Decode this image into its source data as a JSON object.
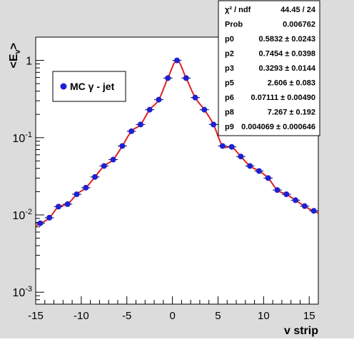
{
  "chart_data": {
    "type": "scatter",
    "xlabel": "v strip",
    "ylabel": "<E",
    "ylabel_subscript": "v",
    "ylabel_close": ">",
    "xlim": [
      -15,
      16
    ],
    "ylim": [
      0.0007,
      2.0
    ],
    "yscale": "log",
    "x_ticks": [
      -15,
      -10,
      -5,
      0,
      5,
      10,
      15
    ],
    "x_tick_labels": [
      "-15",
      "-10",
      "-5",
      "0",
      "5",
      "10",
      "15"
    ],
    "y_ticks": [
      {
        "value": 0.001,
        "base": "10",
        "exp": "-3"
      },
      {
        "value": 0.01,
        "base": "10",
        "exp": "-2"
      },
      {
        "value": 0.1,
        "base": "10",
        "exp": "-1"
      },
      {
        "value": 1,
        "base": "1",
        "exp": ""
      }
    ],
    "legend": {
      "label": "MC γ - jet",
      "position": "upper-left"
    },
    "colors": {
      "marker": "#1f1fd6",
      "fit": "#e02020",
      "frame_bg": "#dcdcdc",
      "plot_bg": "#ffffff"
    },
    "series": [
      {
        "name": "MC γ - jet",
        "x": [
          -14.5,
          -13.5,
          -12.5,
          -11.5,
          -10.5,
          -9.5,
          -8.5,
          -7.5,
          -6.5,
          -5.5,
          -4.5,
          -3.5,
          -2.5,
          -1.5,
          -0.5,
          0.5,
          1.5,
          2.5,
          3.5,
          4.5,
          5.5,
          6.5,
          7.5,
          8.5,
          9.5,
          10.5,
          11.5,
          12.5,
          13.5,
          14.5,
          15.5
        ],
        "y": [
          0.0078,
          0.0092,
          0.0128,
          0.0138,
          0.0185,
          0.0225,
          0.031,
          0.043,
          0.052,
          0.078,
          0.121,
          0.148,
          0.23,
          0.31,
          0.59,
          1.0,
          0.59,
          0.33,
          0.23,
          0.148,
          0.078,
          0.076,
          0.057,
          0.043,
          0.037,
          0.03,
          0.021,
          0.0185,
          0.0155,
          0.013,
          0.0113
        ]
      }
    ],
    "fit_curve_color": "#e02020"
  },
  "stats": {
    "rows": [
      {
        "name": "χ² / ndf",
        "value": "44.45 / 24"
      },
      {
        "name": "Prob",
        "value": "0.006762"
      },
      {
        "name": "p0",
        "value": "0.5832 ± 0.0243"
      },
      {
        "name": "p2",
        "value": "0.7454 ± 0.0398"
      },
      {
        "name": "p3",
        "value": "0.3293 ± 0.0144"
      },
      {
        "name": "p5",
        "value": "2.606 ± 0.083"
      },
      {
        "name": "p6",
        "value": "0.07111 ± 0.00490"
      },
      {
        "name": "p8",
        "value": "7.267 ± 0.192"
      },
      {
        "name": "p9",
        "value": "0.004069 ± 0.000646"
      }
    ]
  }
}
